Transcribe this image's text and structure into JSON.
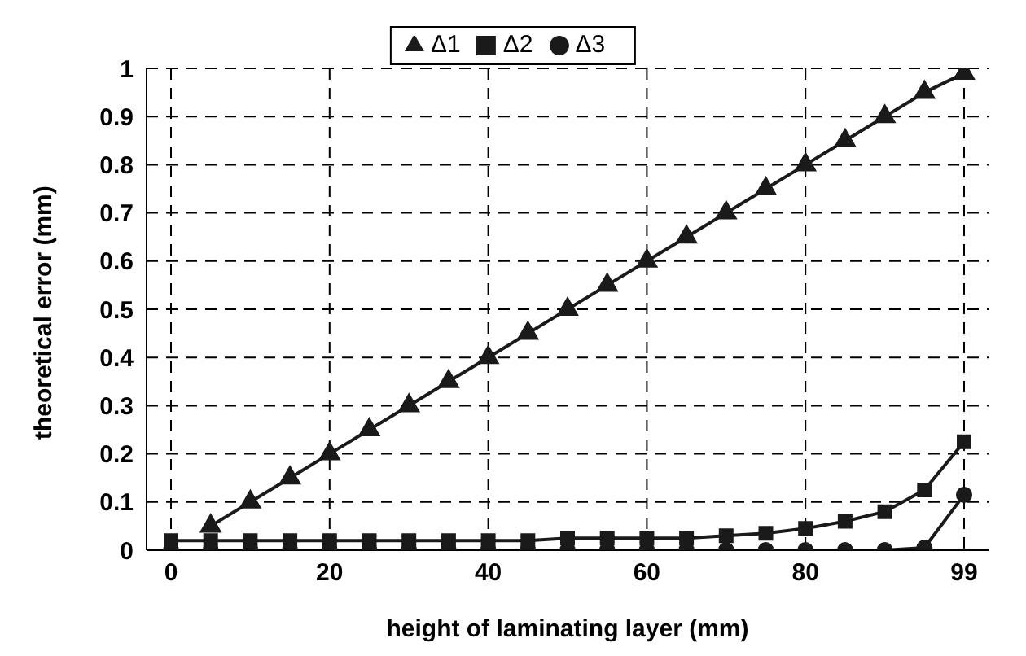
{
  "chart_data": {
    "type": "line",
    "xlabel": "height of laminating layer (mm)",
    "ylabel": "theoretical error (mm)",
    "categories": [
      "0",
      null,
      null,
      null,
      "20",
      null,
      null,
      null,
      "40",
      null,
      null,
      null,
      "60",
      null,
      null,
      null,
      "80",
      null,
      null,
      null,
      "99"
    ],
    "series": [
      {
        "name": "Δ1",
        "color": "#1a1a1a",
        "marker": "triangle",
        "values": [
          null,
          0.05,
          0.1,
          0.15,
          0.2,
          0.25,
          0.3,
          0.35,
          0.4,
          0.45,
          0.5,
          0.55,
          0.6,
          0.65,
          0.7,
          0.75,
          0.8,
          0.85,
          0.9,
          0.95,
          0.99
        ]
      },
      {
        "name": "Δ2",
        "color": "#1a1a1a",
        "marker": "square",
        "values": [
          0.02,
          0.02,
          0.02,
          0.02,
          0.02,
          0.02,
          0.02,
          0.02,
          0.02,
          0.02,
          0.025,
          0.025,
          0.025,
          0.025,
          0.03,
          0.035,
          0.045,
          0.06,
          0.08,
          0.125,
          0.225
        ]
      },
      {
        "name": "Δ3",
        "color": "#1a1a1a",
        "marker": "circle",
        "values": [
          0,
          0,
          0,
          0,
          0,
          0,
          0,
          0,
          0,
          0,
          0,
          0,
          0,
          0,
          0,
          0,
          0,
          0,
          0,
          0.005,
          0.115
        ]
      }
    ],
    "ylim": [
      0,
      1
    ],
    "yticks": [
      0,
      0.1,
      0.2,
      0.3,
      0.4,
      0.5,
      0.6,
      0.7,
      0.8,
      0.9,
      1
    ],
    "grid": true,
    "line_style": "solid",
    "legend": "top"
  }
}
